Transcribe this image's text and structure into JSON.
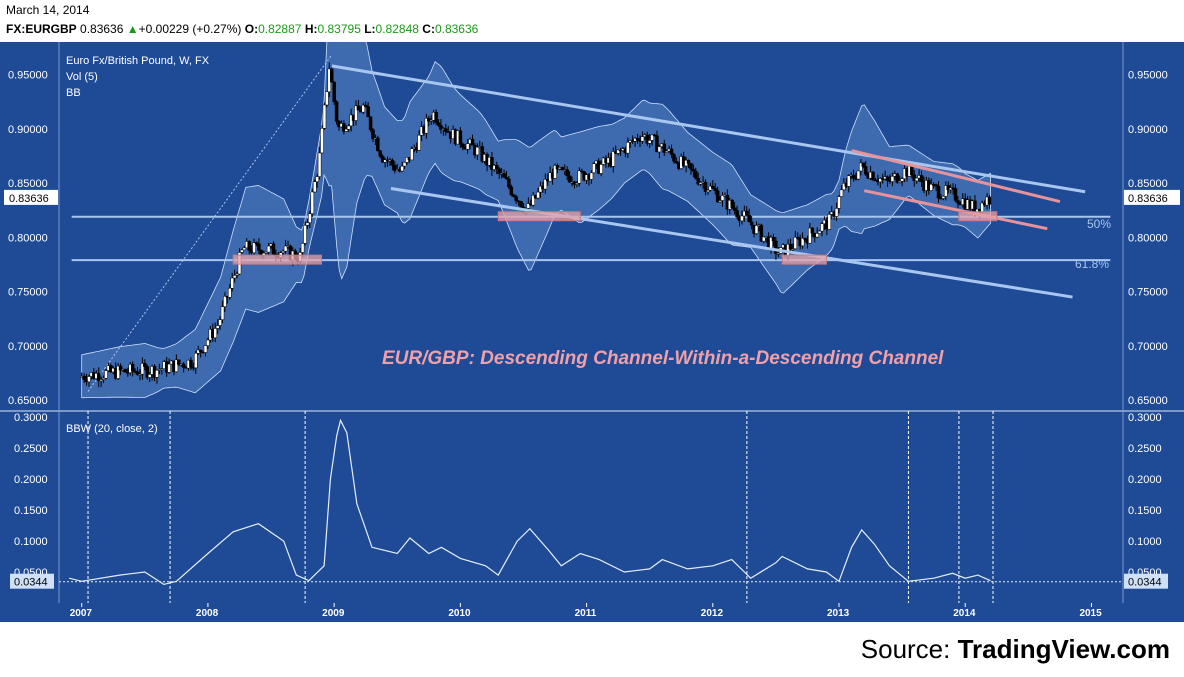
{
  "header": {
    "date": "March 14, 2014",
    "symbol": "FX:EURGBP",
    "last": "0.83636",
    "up_arrow": "▲",
    "change": "+0.00229 (+0.27%)",
    "o_label": "O:",
    "o": "0.82887",
    "h_label": "H:",
    "h": "0.83795",
    "l_label": "L:",
    "l": "0.82848",
    "c_label": "C:",
    "c": "0.83636"
  },
  "legend": {
    "title": "Euro Fx/British Pound, W, FX",
    "vol": "Vol (5)",
    "bb": "BB",
    "bbw": "BBW (20, close, 2)"
  },
  "annotation": "EUR/GBP: Descending Channel-Within-a-Descending Channel",
  "fib_labels": {
    "fib50": "50%",
    "fib618": "61.8%"
  },
  "last_price_tag": "0.83636",
  "last_bbw_tag": "0.0344",
  "source": {
    "prefix": "Source: ",
    "site": "TradingView.com"
  },
  "colors": {
    "background": "#1e4a96",
    "bands": "#5a86c6",
    "channel": "#a9c6ee",
    "inner_channel": "#e8939a",
    "annotation": "#f0a0a8"
  },
  "chart_data": {
    "type": "candlestick",
    "price_axis": {
      "ylim": [
        0.64,
        0.98
      ],
      "ticks": [
        "0.65000",
        "0.70000",
        "0.75000",
        "0.80000",
        "0.85000",
        "0.90000",
        "0.95000"
      ]
    },
    "bbw_axis": {
      "ylim": [
        0,
        0.31
      ],
      "ticks": [
        "0.0500",
        "0.1000",
        "0.1500",
        "0.2000",
        "0.2500",
        "0.3000"
      ]
    },
    "x_ticks": [
      "2007",
      "2008",
      "2009",
      "2010",
      "2011",
      "2012",
      "2013",
      "2014",
      "2015"
    ],
    "price_path": [
      [
        2007.0,
        0.672
      ],
      [
        2007.3,
        0.676
      ],
      [
        2007.6,
        0.678
      ],
      [
        2007.9,
        0.686
      ],
      [
        2008.1,
        0.72
      ],
      [
        2008.2,
        0.755
      ],
      [
        2008.3,
        0.79
      ],
      [
        2008.6,
        0.788
      ],
      [
        2008.75,
        0.782
      ],
      [
        2008.9,
        0.87
      ],
      [
        2008.98,
        0.958
      ],
      [
        2009.05,
        0.9
      ],
      [
        2009.25,
        0.92
      ],
      [
        2009.4,
        0.875
      ],
      [
        2009.55,
        0.86
      ],
      [
        2009.8,
        0.915
      ],
      [
        2009.95,
        0.895
      ],
      [
        2010.15,
        0.88
      ],
      [
        2010.35,
        0.855
      ],
      [
        2010.55,
        0.825
      ],
      [
        2010.75,
        0.86
      ],
      [
        2010.95,
        0.855
      ],
      [
        2011.2,
        0.87
      ],
      [
        2011.45,
        0.895
      ],
      [
        2011.65,
        0.88
      ],
      [
        2011.85,
        0.86
      ],
      [
        2012.1,
        0.835
      ],
      [
        2012.3,
        0.815
      ],
      [
        2012.55,
        0.785
      ],
      [
        2012.75,
        0.8
      ],
      [
        2012.95,
        0.815
      ],
      [
        2013.05,
        0.845
      ],
      [
        2013.2,
        0.865
      ],
      [
        2013.4,
        0.85
      ],
      [
        2013.55,
        0.862
      ],
      [
        2013.75,
        0.845
      ],
      [
        2013.95,
        0.838
      ],
      [
        2014.1,
        0.826
      ],
      [
        2014.2,
        0.836
      ]
    ],
    "bbw_path": [
      [
        2006.9,
        0.04
      ],
      [
        2007.0,
        0.035
      ],
      [
        2007.3,
        0.045
      ],
      [
        2007.5,
        0.05
      ],
      [
        2007.65,
        0.03
      ],
      [
        2007.75,
        0.035
      ],
      [
        2008.0,
        0.08
      ],
      [
        2008.2,
        0.115
      ],
      [
        2008.4,
        0.128
      ],
      [
        2008.6,
        0.1
      ],
      [
        2008.7,
        0.045
      ],
      [
        2008.8,
        0.036
      ],
      [
        2008.92,
        0.06
      ],
      [
        2008.97,
        0.2
      ],
      [
        2009.02,
        0.27
      ],
      [
        2009.05,
        0.295
      ],
      [
        2009.1,
        0.275
      ],
      [
        2009.18,
        0.16
      ],
      [
        2009.3,
        0.09
      ],
      [
        2009.5,
        0.08
      ],
      [
        2009.6,
        0.105
      ],
      [
        2009.75,
        0.08
      ],
      [
        2009.85,
        0.09
      ],
      [
        2010.0,
        0.072
      ],
      [
        2010.2,
        0.06
      ],
      [
        2010.3,
        0.045
      ],
      [
        2010.45,
        0.1
      ],
      [
        2010.55,
        0.12
      ],
      [
        2010.7,
        0.085
      ],
      [
        2010.8,
        0.06
      ],
      [
        2010.95,
        0.08
      ],
      [
        2011.1,
        0.07
      ],
      [
        2011.3,
        0.05
      ],
      [
        2011.5,
        0.055
      ],
      [
        2011.6,
        0.07
      ],
      [
        2011.8,
        0.055
      ],
      [
        2012.0,
        0.06
      ],
      [
        2012.15,
        0.07
      ],
      [
        2012.25,
        0.05
      ],
      [
        2012.3,
        0.04
      ],
      [
        2012.5,
        0.065
      ],
      [
        2012.55,
        0.075
      ],
      [
        2012.75,
        0.055
      ],
      [
        2012.9,
        0.05
      ],
      [
        2013.0,
        0.035
      ],
      [
        2013.1,
        0.09
      ],
      [
        2013.18,
        0.118
      ],
      [
        2013.28,
        0.095
      ],
      [
        2013.4,
        0.06
      ],
      [
        2013.55,
        0.035
      ],
      [
        2013.75,
        0.04
      ],
      [
        2013.9,
        0.048
      ],
      [
        2014.0,
        0.04
      ],
      [
        2014.1,
        0.045
      ],
      [
        2014.2,
        0.036
      ]
    ],
    "channel_upper": [
      [
        2008.98,
        0.958
      ],
      [
        2014.95,
        0.842
      ]
    ],
    "channel_lower": [
      [
        2009.45,
        0.845
      ],
      [
        2014.85,
        0.745
      ]
    ],
    "inner_upper": [
      [
        2013.1,
        0.88
      ],
      [
        2014.75,
        0.833
      ]
    ],
    "inner_lower": [
      [
        2013.2,
        0.843
      ],
      [
        2014.65,
        0.808
      ]
    ],
    "fib_levels": [
      0.819,
      0.779
    ],
    "pink_zones": [
      [
        2008.2,
        2008.9,
        0.779
      ],
      [
        2010.3,
        2010.95,
        0.819
      ],
      [
        2012.55,
        2012.9,
        0.779
      ],
      [
        2013.95,
        2014.25,
        0.819
      ]
    ],
    "vertical_markers": [
      2007.05,
      2007.7,
      2008.77,
      2012.27,
      2013.55,
      2013.95,
      2014.22
    ],
    "bbw_last": 0.0344
  }
}
